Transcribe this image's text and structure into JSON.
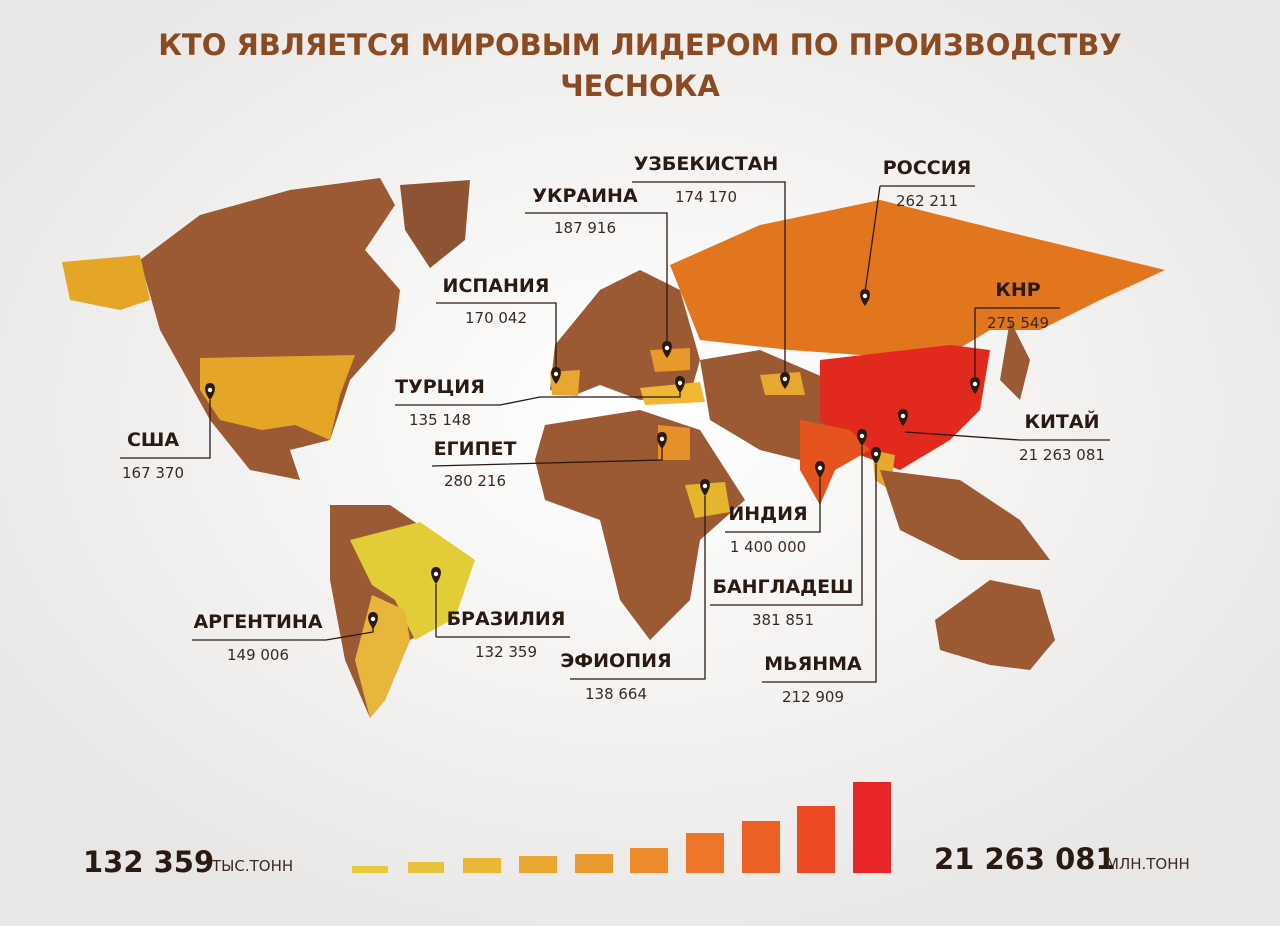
{
  "title": [
    "КТО ЯВЛЯЕТСЯ МИРОВЫМ ЛИДЕРОМ ПО ПРОИЗВОДСТВУ",
    "ЧЕСНОКА"
  ],
  "countries": [
    {
      "name": "УЗБЕКИСТАН",
      "value": "174 170"
    },
    {
      "name": "УКРАИНА",
      "value": "187 916"
    },
    {
      "name": "РОССИЯ",
      "value": "262 211"
    },
    {
      "name": "ИСПАНИЯ",
      "value": "170 042"
    },
    {
      "name": "КНР",
      "value": "275 549"
    },
    {
      "name": "ТУРЦИЯ",
      "value": "135 148"
    },
    {
      "name": "США",
      "value": "167 370"
    },
    {
      "name": "ЕГИПЕТ",
      "value": "280 216"
    },
    {
      "name": "КИТАЙ",
      "value": "21 263 081"
    },
    {
      "name": "ИНДИЯ",
      "value": "1 400 000"
    },
    {
      "name": "БАНГЛАДЕШ",
      "value": "381 851"
    },
    {
      "name": "АРГЕНТИНА",
      "value": "149 006"
    },
    {
      "name": "БРАЗИЛИЯ",
      "value": "132 359"
    },
    {
      "name": "ЭФИОПИЯ",
      "value": "138 664"
    },
    {
      "name": "МЬЯНМА",
      "value": "212 909"
    }
  ],
  "scale": {
    "min": "132 359",
    "min_unit": "ТЫС.ТОНН",
    "max": "21 263 081",
    "max_unit": "МЛН.ТОНН"
  }
}
